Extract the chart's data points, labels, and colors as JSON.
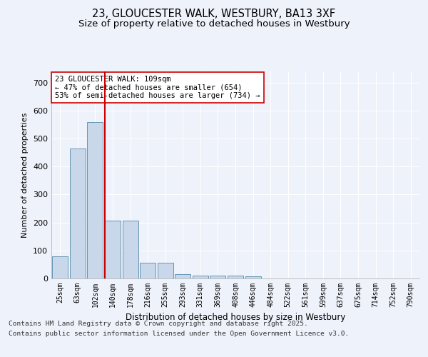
{
  "title_line1": "23, GLOUCESTER WALK, WESTBURY, BA13 3XF",
  "title_line2": "Size of property relative to detached houses in Westbury",
  "xlabel": "Distribution of detached houses by size in Westbury",
  "ylabel": "Number of detached properties",
  "categories": [
    "25sqm",
    "63sqm",
    "102sqm",
    "140sqm",
    "178sqm",
    "216sqm",
    "255sqm",
    "293sqm",
    "331sqm",
    "369sqm",
    "408sqm",
    "446sqm",
    "484sqm",
    "522sqm",
    "561sqm",
    "599sqm",
    "637sqm",
    "675sqm",
    "714sqm",
    "752sqm",
    "790sqm"
  ],
  "bar_heights": [
    80,
    465,
    560,
    207,
    207,
    57,
    57,
    15,
    10,
    10,
    10,
    7,
    0,
    0,
    0,
    0,
    0,
    0,
    0,
    0,
    0
  ],
  "bar_color": "#c8d8ea",
  "bar_edge_color": "#5588aa",
  "ylim": [
    0,
    740
  ],
  "yticks": [
    0,
    100,
    200,
    300,
    400,
    500,
    600,
    700
  ],
  "vline_position": 2.55,
  "vline_color": "#cc0000",
  "annotation_text": "23 GLOUCESTER WALK: 109sqm\n← 47% of detached houses are smaller (654)\n53% of semi-detached houses are larger (734) →",
  "footer_line1": "Contains HM Land Registry data © Crown copyright and database right 2025.",
  "footer_line2": "Contains public sector information licensed under the Open Government Licence v3.0.",
  "bg_color": "#eef2fb",
  "grid_color": "#ffffff",
  "title_fontsize": 10.5,
  "subtitle_fontsize": 9.5,
  "annotation_fontsize": 7.5,
  "footer_fontsize": 6.8,
  "ylabel_fontsize": 8,
  "xlabel_fontsize": 8.5,
  "tick_fontsize": 7
}
